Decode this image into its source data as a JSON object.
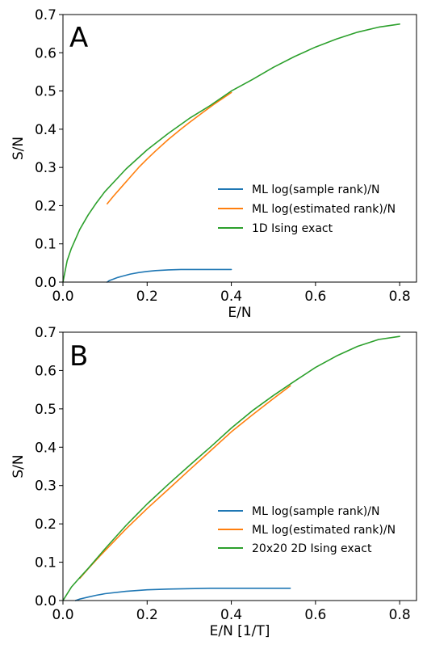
{
  "colors": {
    "blue": "#1f77b4",
    "orange": "#ff7f0e",
    "green": "#2ca02c"
  },
  "chart_data": [
    {
      "type": "line",
      "panel_label": "A",
      "xlabel": "E/N",
      "ylabel": "S/N",
      "xlim": [
        0.0,
        0.84
      ],
      "ylim": [
        0.0,
        0.7
      ],
      "xticks": [
        0.0,
        0.2,
        0.4,
        0.6,
        0.8
      ],
      "xtick_labels": [
        "0.0",
        "0.2",
        "0.4",
        "0.6",
        "0.8"
      ],
      "yticks": [
        0.0,
        0.1,
        0.2,
        0.3,
        0.4,
        0.5,
        0.6,
        0.7
      ],
      "ytick_labels": [
        "0.0",
        "0.1",
        "0.2",
        "0.3",
        "0.4",
        "0.5",
        "0.6",
        "0.7"
      ],
      "grid": false,
      "legend_position": "center-right",
      "series": [
        {
          "name": "ML log(sample rank)/N",
          "color": "#1f77b4",
          "x": [
            0.105,
            0.11,
            0.12,
            0.13,
            0.14,
            0.15,
            0.16,
            0.18,
            0.2,
            0.22,
            0.25,
            0.28,
            0.3,
            0.35,
            0.4
          ],
          "y": [
            0.0,
            0.004,
            0.008,
            0.012,
            0.015,
            0.018,
            0.021,
            0.025,
            0.028,
            0.03,
            0.032,
            0.033,
            0.033,
            0.033,
            0.033
          ]
        },
        {
          "name": "ML log(estimated rank)/N",
          "color": "#ff7f0e",
          "x": [
            0.105,
            0.12,
            0.14,
            0.16,
            0.18,
            0.2,
            0.22,
            0.25,
            0.28,
            0.3,
            0.33,
            0.36,
            0.38,
            0.4
          ],
          "y": [
            0.205,
            0.225,
            0.25,
            0.275,
            0.3,
            0.322,
            0.343,
            0.373,
            0.4,
            0.417,
            0.442,
            0.466,
            0.481,
            0.496
          ]
        },
        {
          "name": "1D Ising exact",
          "color": "#2ca02c",
          "x": [
            0.0,
            0.01,
            0.02,
            0.04,
            0.06,
            0.08,
            0.1,
            0.15,
            0.2,
            0.25,
            0.3,
            0.35,
            0.4,
            0.45,
            0.5,
            0.55,
            0.6,
            0.65,
            0.7,
            0.75,
            0.8
          ],
          "y": [
            0.0,
            0.056,
            0.088,
            0.138,
            0.176,
            0.208,
            0.237,
            0.296,
            0.346,
            0.389,
            0.428,
            0.462,
            0.5,
            0.53,
            0.562,
            0.59,
            0.615,
            0.636,
            0.654,
            0.667,
            0.675
          ]
        }
      ]
    },
    {
      "type": "line",
      "panel_label": "B",
      "xlabel": "E/N  [1/T]",
      "ylabel": "S/N",
      "xlim": [
        0.0,
        0.84
      ],
      "ylim": [
        0.0,
        0.7
      ],
      "xticks": [
        0.0,
        0.2,
        0.4,
        0.6,
        0.8
      ],
      "xtick_labels": [
        "0.0",
        "0.2",
        "0.4",
        "0.6",
        "0.8"
      ],
      "yticks": [
        0.0,
        0.1,
        0.2,
        0.3,
        0.4,
        0.5,
        0.6,
        0.7
      ],
      "ytick_labels": [
        "0.0",
        "0.1",
        "0.2",
        "0.3",
        "0.4",
        "0.5",
        "0.6",
        "0.7"
      ],
      "grid": false,
      "legend_position": "lower-right",
      "series": [
        {
          "name": "ML log(sample rank)/N",
          "color": "#1f77b4",
          "x": [
            0.03,
            0.04,
            0.06,
            0.08,
            0.1,
            0.15,
            0.2,
            0.25,
            0.3,
            0.35,
            0.4,
            0.45,
            0.5,
            0.54
          ],
          "y": [
            0.0,
            0.004,
            0.009,
            0.014,
            0.018,
            0.024,
            0.028,
            0.03,
            0.031,
            0.032,
            0.032,
            0.032,
            0.032,
            0.032
          ]
        },
        {
          "name": "ML log(estimated rank)/N",
          "color": "#ff7f0e",
          "x": [
            0.04,
            0.06,
            0.08,
            0.1,
            0.15,
            0.2,
            0.25,
            0.3,
            0.35,
            0.4,
            0.45,
            0.5,
            0.54
          ],
          "y": [
            0.058,
            0.083,
            0.107,
            0.13,
            0.187,
            0.24,
            0.29,
            0.34,
            0.39,
            0.44,
            0.484,
            0.527,
            0.56
          ]
        },
        {
          "name": "20x20 2D Ising exact",
          "color": "#2ca02c",
          "x": [
            0.0,
            0.02,
            0.04,
            0.06,
            0.1,
            0.15,
            0.2,
            0.25,
            0.3,
            0.35,
            0.4,
            0.45,
            0.5,
            0.55,
            0.6,
            0.65,
            0.7,
            0.75,
            0.8
          ],
          "y": [
            0.0,
            0.035,
            0.06,
            0.084,
            0.135,
            0.196,
            0.252,
            0.303,
            0.352,
            0.4,
            0.45,
            0.495,
            0.535,
            0.572,
            0.608,
            0.638,
            0.663,
            0.681,
            0.689
          ]
        }
      ]
    }
  ]
}
